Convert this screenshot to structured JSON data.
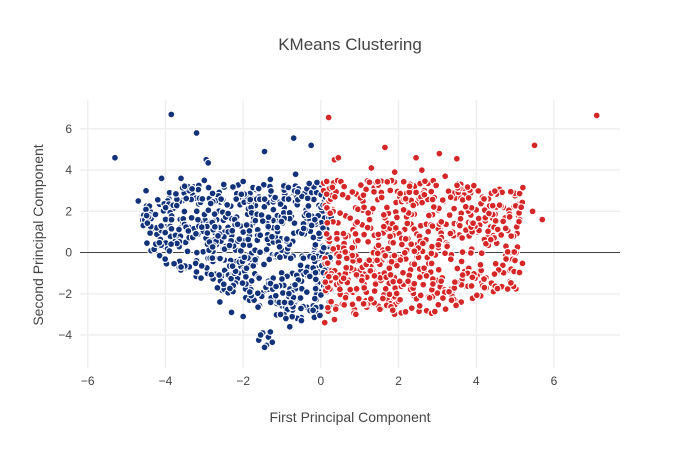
{
  "chart_data": {
    "type": "scatter",
    "title": "KMeans Clustering",
    "xlabel": "First Principal Component",
    "ylabel": "Second Principal Component",
    "xlim": [
      -6.2,
      7.7
    ],
    "ylim": [
      -5.6,
      7.4
    ],
    "x_ticks": [
      -6,
      -4,
      -2,
      0,
      2,
      4,
      6
    ],
    "y_ticks": [
      -4,
      -2,
      0,
      2,
      4,
      6
    ],
    "x_tick_labels": [
      "−6",
      "−4",
      "−2",
      "0",
      "2",
      "4",
      "6"
    ],
    "y_tick_labels": [
      "−4",
      "−2",
      "0",
      "2",
      "4",
      "6"
    ],
    "grid": true,
    "zero_line_y": true,
    "legend": "none",
    "series": [
      {
        "cluster": 0,
        "color": "#12327a",
        "points": [
          [
            -5.3,
            4.6
          ],
          [
            -3.85,
            6.7
          ],
          [
            -3.2,
            5.8
          ],
          [
            -1.45,
            4.9
          ],
          [
            -0.7,
            5.55
          ],
          [
            -0.25,
            5.2
          ],
          [
            -2.95,
            4.5
          ],
          [
            -2.9,
            4.35
          ],
          [
            -4.5,
            3.0
          ],
          [
            -4.7,
            2.5
          ],
          [
            -4.1,
            3.6
          ],
          [
            -3.6,
            3.6
          ],
          [
            -3.0,
            3.5
          ],
          [
            -0.65,
            3.8
          ],
          [
            -0.3,
            3.35
          ],
          [
            -0.1,
            3.4
          ],
          [
            -1.3,
            3.55
          ],
          [
            -1.6,
            3.1
          ],
          [
            -2.0,
            3.45
          ],
          [
            -2.5,
            3.3
          ],
          [
            -1.5,
            -3.9
          ],
          [
            -1.35,
            -4.1
          ],
          [
            -1.6,
            -4.25
          ],
          [
            -1.4,
            -4.5
          ],
          [
            -1.25,
            -4.35
          ],
          [
            -1.55,
            -4.0
          ],
          [
            -1.3,
            -3.85
          ],
          [
            -1.45,
            -4.6
          ],
          [
            -0.8,
            -3.6
          ],
          [
            -0.5,
            -3.3
          ],
          [
            -0.2,
            -2.8
          ],
          [
            -0.9,
            -3.2
          ],
          [
            -2.0,
            -3.1
          ],
          [
            -2.3,
            -2.9
          ],
          [
            -2.6,
            -2.4
          ]
        ],
        "scatter": {
          "count": 660,
          "x_range": [
            -4.6,
            0.3
          ],
          "y_range": [
            -3.2,
            3.3
          ]
        }
      },
      {
        "cluster": 1,
        "color": "#d62728",
        "points": [
          [
            7.1,
            6.65
          ],
          [
            0.2,
            6.55
          ],
          [
            5.5,
            5.2
          ],
          [
            1.65,
            5.1
          ],
          [
            3.05,
            4.8
          ],
          [
            2.45,
            4.6
          ],
          [
            3.5,
            4.55
          ],
          [
            0.35,
            4.5
          ],
          [
            0.45,
            4.6
          ],
          [
            0.15,
            3.45
          ],
          [
            0.6,
            3.2
          ],
          [
            5.2,
            3.15
          ],
          [
            1.3,
            4.1
          ],
          [
            1.9,
            3.9
          ],
          [
            2.6,
            4.0
          ],
          [
            3.2,
            3.7
          ],
          [
            5.45,
            2.0
          ],
          [
            5.7,
            1.6
          ],
          [
            5.1,
            1.5
          ],
          [
            4.9,
            0.8
          ],
          [
            4.2,
            2.6
          ],
          [
            4.6,
            2.3
          ],
          [
            0.1,
            -3.4
          ],
          [
            0.35,
            -3.25
          ],
          [
            0.9,
            -3.0
          ],
          [
            1.85,
            -2.8
          ],
          [
            2.8,
            -2.2
          ],
          [
            3.3,
            -1.9
          ],
          [
            3.9,
            -1.2
          ]
        ],
        "scatter": {
          "count": 640,
          "x_range": [
            0.0,
            5.2
          ],
          "y_range": [
            -3.0,
            3.5
          ]
        }
      }
    ]
  }
}
